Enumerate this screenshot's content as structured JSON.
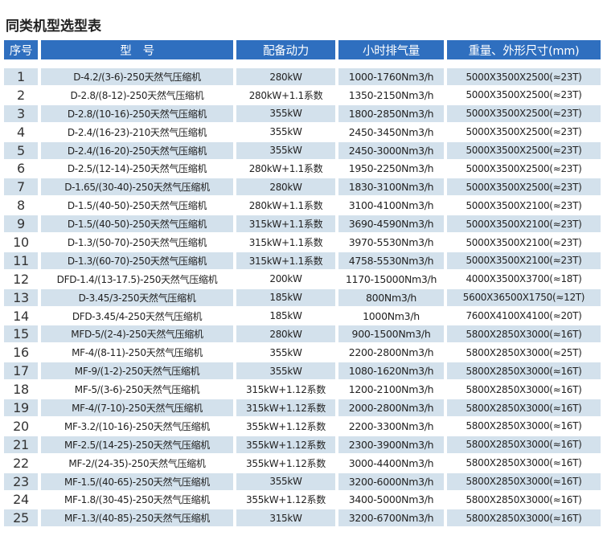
{
  "title": "同类机型选型表",
  "colors": {
    "header_bg": "#2f6fbf",
    "row_shade": "#d3e1ec"
  },
  "headers": [
    "序号",
    "型　号",
    "配备动力",
    "小时排气量",
    "重量、外形尺寸(mm)"
  ],
  "rows": [
    [
      "1",
      "D-4.2/(3-6)-250天然气压缩机",
      "280kW",
      "1000-1760Nm3/h",
      "5000X3500X2500(≈23T)"
    ],
    [
      "2",
      "D-2.8/(8-12)-250天然气压缩机",
      "280kW+1.1系数",
      "1350-2150Nm3/h",
      "5000X3500X2500(≈23T)"
    ],
    [
      "3",
      "D-2.8/(10-16)-250天然气压缩机",
      "355kW",
      "1800-2850Nm3/h",
      "5000X3500X2500(≈23T)"
    ],
    [
      "4",
      "D-2.4/(16-23)-210天然气压缩机",
      "355kW",
      "2450-3450Nm3/h",
      "5000X3500X2500(≈23T)"
    ],
    [
      "5",
      "D-2.4/(16-20)-250天然气压缩机",
      "355kW",
      "2450-3000Nm3/h",
      "5000X3500X2500(≈23T)"
    ],
    [
      "6",
      "D-2.5/(12-14)-250天然气压缩机",
      "280kW+1.1系数",
      "1950-2250Nm3/h",
      "5000X3500X2500(≈23T)"
    ],
    [
      "7",
      "D-1.65/(30-40)-250天然气压缩机",
      "280kW",
      "1830-3100Nm3/h",
      "5000X3500X2500(≈23T)"
    ],
    [
      "8",
      "D-1.5/(40-50)-250天然气压缩机",
      "280kW+1.1系数",
      "3100-4100Nm3/h",
      "5000X3500X2100(≈23T)"
    ],
    [
      "9",
      "D-1.5/(40-50)-250天然气压缩机",
      "315kW+1.1系数",
      "3690-4590Nm3/h",
      "5000X3500X2100(≈23T)"
    ],
    [
      "10",
      "D-1.3/(50-70)-250天然气压缩机",
      "315kW+1.1系数",
      "3970-5530Nm3/h",
      "5000X3500X2100(≈23T)"
    ],
    [
      "11",
      "D-1.3/(60-70)-250天然气压缩机",
      "315kW+1.1系数",
      "4758-5530Nm3/h",
      "5000X3500X2100(≈23T)"
    ],
    [
      "12",
      "DFD-1.4/(13-17.5)-250天然气压缩机",
      "200kW",
      "1170-15000Nm3/h",
      "4000X3500X3700(≈18T)"
    ],
    [
      "13",
      "D-3.45/3-250天然气压缩机",
      "185kW",
      "800Nm3/h",
      "5600X36500X1750(≈12T)"
    ],
    [
      "14",
      "DFD-3.45/4-250天然气压缩机",
      "185kW",
      "1000Nm3/h",
      "7600X4100X4100(≈20T)"
    ],
    [
      "15",
      "MFD-5/(2-4)-250天然气压缩机",
      "280kW",
      "900-1500Nm3/h",
      "5800X2850X3000(≈16T)"
    ],
    [
      "16",
      "MF-4/(8-11)-250天然气压缩机",
      "355kW",
      "2200-2800Nm3/h",
      "5800X2850X3000(≈25T)"
    ],
    [
      "17",
      "MF-9/(1-2)-250天然气压缩机",
      "355kW",
      "1080-1620Nm3/h",
      "5800X2850X3000(≈16T)"
    ],
    [
      "18",
      "MF-5/(3-6)-250天然气压缩机",
      "315kW+1.12系数",
      "1200-2100Nm3/h",
      "5800X2850X3000(≈16T)"
    ],
    [
      "19",
      "MF-4/(7-10)-250天然气压缩机",
      "315kW+1.12系数",
      "2000-2800Nm3/h",
      "5800X2850X3000(≈16T)"
    ],
    [
      "20",
      "MF-3.2/(10-16)-250天然气压缩机",
      "355kW+1.12系数",
      "2200-3300Nm3/h",
      "5800X2850X3000(≈16T)"
    ],
    [
      "21",
      "MF-2.5/(14-25)-250天然气压缩机",
      "355kW+1.12系数",
      "2300-3900Nm3/h",
      "5800X2850X3000(≈16T)"
    ],
    [
      "22",
      "MF-2/(24-35)-250天然气压缩机",
      "355kW+1.12系数",
      "3000-4400Nm3/h",
      "5800X2850X3000(≈16T)"
    ],
    [
      "23",
      "MF-1.5/(40-65)-250天然气压缩机",
      "355kW",
      "3200-6000Nm3/h",
      "5800X2850X3000(≈16T)"
    ],
    [
      "24",
      "MF-1.8/(30-45)-250天然气压缩机",
      "355kW+1.12系数",
      "3400-5000Nm3/h",
      "5800X2850X3000(≈16T)"
    ],
    [
      "25",
      "MF-1.3/(40-85)-250天然气压缩机",
      "315kW",
      "3200-6700Nm3/h",
      "5800X2850X3000(≈16T)"
    ]
  ]
}
